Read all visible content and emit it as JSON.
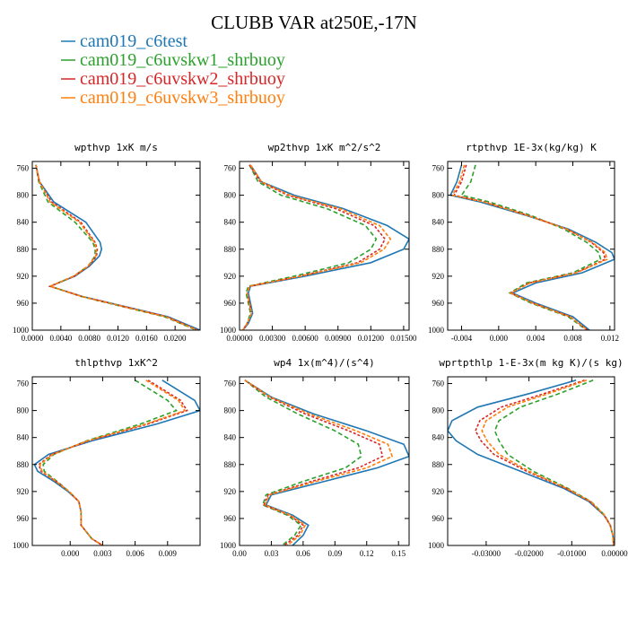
{
  "title": "CLUBB VAR at250E,-17N",
  "colors": {
    "cam019_c6test": "#1f77b4",
    "cam019_c6uvskw1_shrbuoy": "#2ca02c",
    "cam019_c6uvskw2_shrbuoy": "#d62728",
    "cam019_c6uvskw3_shrbuoy": "#ff7f0e"
  },
  "legend": [
    {
      "name": "cam019_c6test",
      "color": "#1f77b4",
      "dash": "solid"
    },
    {
      "name": "cam019_c6uvskw1_shrbuoy",
      "color": "#2ca02c",
      "dash": "dashed"
    },
    {
      "name": "cam019_c6uvskw2_shrbuoy",
      "color": "#d62728",
      "dash": "dashed"
    },
    {
      "name": "cam019_c6uvskw3_shrbuoy",
      "color": "#ff7f0e",
      "dash": "dashed"
    }
  ],
  "chart_data": [
    {
      "type": "line",
      "title": "wpthvp  1xK m/s",
      "ylim": [
        1000,
        750
      ],
      "yticks": [
        760,
        800,
        840,
        880,
        920,
        960,
        1000
      ],
      "xlim": [
        0,
        0.0235
      ],
      "xticks": [
        0,
        0.004,
        0.008,
        0.012,
        0.016,
        0.02
      ],
      "xtick_labels": [
        "0.0000",
        "0.0040",
        "0.0080",
        "0.0120",
        "0.0160",
        "0.0200"
      ],
      "y": [
        755,
        780,
        810,
        840,
        870,
        880,
        890,
        905,
        920,
        935,
        950,
        965,
        980,
        1000
      ],
      "series": [
        {
          "name": "cam019_c6test",
          "x": [
            0.0005,
            0.001,
            0.003,
            0.0075,
            0.0095,
            0.0097,
            0.0094,
            0.008,
            0.006,
            0.0025,
            0.007,
            0.013,
            0.019,
            0.0235
          ]
        },
        {
          "name": "cam019_c6uvskw1_shrbuoy",
          "x": [
            0.0005,
            0.0009,
            0.0022,
            0.006,
            0.0085,
            0.0088,
            0.0088,
            0.0078,
            0.0058,
            0.0025,
            0.0068,
            0.0126,
            0.0185,
            0.023
          ]
        },
        {
          "name": "cam019_c6uvskw2_shrbuoy",
          "x": [
            0.0005,
            0.001,
            0.0027,
            0.0068,
            0.0088,
            0.0091,
            0.009,
            0.0079,
            0.0059,
            0.0025,
            0.0069,
            0.0128,
            0.0188,
            0.0232
          ]
        },
        {
          "name": "cam019_c6uvskw3_shrbuoy",
          "x": [
            0.0005,
            0.001,
            0.0025,
            0.0066,
            0.0087,
            0.009,
            0.0089,
            0.0078,
            0.0058,
            0.0025,
            0.0069,
            0.0128,
            0.0187,
            0.0231
          ]
        }
      ]
    },
    {
      "type": "line",
      "title": "wp2thvp  1xK m^2/s^2",
      "ylim": [
        1000,
        750
      ],
      "yticks": [
        760,
        800,
        840,
        880,
        920,
        960,
        1000
      ],
      "xlim": [
        0,
        0.0155
      ],
      "xticks": [
        0,
        0.003,
        0.006,
        0.009,
        0.012,
        0.015
      ],
      "xtick_labels": [
        "0.00000",
        "0.00300",
        "0.00600",
        "0.00900",
        "0.01200",
        "0.01500"
      ],
      "y": [
        755,
        780,
        800,
        820,
        845,
        865,
        880,
        900,
        920,
        935,
        945,
        960,
        975,
        990,
        1000
      ],
      "series": [
        {
          "name": "cam019_c6test",
          "x": [
            0.001,
            0.002,
            0.005,
            0.0095,
            0.0135,
            0.0155,
            0.015,
            0.012,
            0.006,
            0.001,
            0.0008,
            0.001,
            0.0012,
            0.0008,
            0.0003
          ]
        },
        {
          "name": "cam019_c6uvskw1_shrbuoy",
          "x": [
            0.0009,
            0.0017,
            0.0038,
            0.008,
            0.0115,
            0.0125,
            0.012,
            0.01,
            0.005,
            0.0008,
            0.0006,
            0.0008,
            0.001,
            0.0007,
            0.0003
          ]
        },
        {
          "name": "cam019_c6uvskw2_shrbuoy",
          "x": [
            0.0009,
            0.0019,
            0.0044,
            0.0088,
            0.0123,
            0.0133,
            0.0128,
            0.0108,
            0.0055,
            0.0009,
            0.0007,
            0.0009,
            0.0011,
            0.0007,
            0.0003
          ]
        },
        {
          "name": "cam019_c6uvskw3_shrbuoy",
          "x": [
            0.001,
            0.002,
            0.0046,
            0.0092,
            0.0128,
            0.0138,
            0.0132,
            0.0111,
            0.0056,
            0.0009,
            0.0007,
            0.0009,
            0.0011,
            0.0007,
            0.0003
          ]
        }
      ]
    },
    {
      "type": "line",
      "title": "rtpthvp  1E-3x(kg/kg) K",
      "ylim": [
        1000,
        750
      ],
      "yticks": [
        760,
        800,
        840,
        880,
        920,
        960,
        1000
      ],
      "xlim": [
        -0.0055,
        0.0125
      ],
      "xticks": [
        -0.004,
        0,
        0.004,
        0.008,
        0.012
      ],
      "xtick_labels": [
        "-0.004",
        "0.000",
        "0.004",
        "0.008",
        "0.012"
      ],
      "y": [
        755,
        780,
        800,
        810,
        830,
        850,
        870,
        885,
        895,
        915,
        930,
        945,
        960,
        980,
        1000
      ],
      "series": [
        {
          "name": "cam019_c6test",
          "x": [
            -0.004,
            -0.0045,
            -0.0052,
            -0.002,
            0.003,
            0.0075,
            0.0105,
            0.0122,
            0.0125,
            0.009,
            0.004,
            0.0015,
            0.004,
            0.008,
            0.0098
          ]
        },
        {
          "name": "cam019_c6uvskw1_shrbuoy",
          "x": [
            -0.0025,
            -0.003,
            -0.004,
            -0.001,
            0.0035,
            0.007,
            0.0095,
            0.0108,
            0.011,
            0.008,
            0.003,
            0.0012,
            0.0035,
            0.0075,
            0.0095
          ]
        },
        {
          "name": "cam019_c6uvskw2_shrbuoy",
          "x": [
            -0.0035,
            -0.004,
            -0.0048,
            -0.0015,
            0.0032,
            0.0073,
            0.01,
            0.0113,
            0.0115,
            0.0083,
            0.0033,
            0.0013,
            0.0037,
            0.0077,
            0.0096
          ]
        },
        {
          "name": "cam019_c6uvskw3_shrbuoy",
          "x": [
            -0.0037,
            -0.0042,
            -0.005,
            -0.0016,
            0.0031,
            0.0073,
            0.0101,
            0.0115,
            0.0117,
            0.0084,
            0.0034,
            0.0013,
            0.0037,
            0.0077,
            0.0096
          ]
        }
      ]
    },
    {
      "type": "line",
      "title": "thlpthvp  1xK^2",
      "ylim": [
        1000,
        750
      ],
      "yticks": [
        760,
        800,
        840,
        880,
        920,
        960,
        1000
      ],
      "xlim": [
        -0.0035,
        0.012
      ],
      "xticks": [
        0,
        0.003,
        0.006,
        0.009
      ],
      "xtick_labels": [
        "0.000",
        "0.003",
        "0.006",
        "0.009"
      ],
      "y": [
        755,
        785,
        800,
        820,
        845,
        865,
        880,
        890,
        905,
        920,
        935,
        950,
        970,
        990,
        1000
      ],
      "series": [
        {
          "name": "cam019_c6test",
          "x": [
            0.0085,
            0.0115,
            0.012,
            0.008,
            0.002,
            -0.002,
            -0.0033,
            -0.003,
            -0.0015,
            -0.0002,
            0.0008,
            0.001,
            0.001,
            0.002,
            0.003
          ]
        },
        {
          "name": "cam019_c6uvskw1_shrbuoy",
          "x": [
            0.006,
            0.009,
            0.0098,
            0.0065,
            0.0015,
            -0.0015,
            -0.0025,
            -0.0024,
            -0.0012,
            -0.0001,
            0.0008,
            0.001,
            0.001,
            0.002,
            0.003
          ]
        },
        {
          "name": "cam019_c6uvskw2_shrbuoy",
          "x": [
            0.0072,
            0.0102,
            0.0108,
            0.0072,
            0.0017,
            -0.0017,
            -0.0029,
            -0.0027,
            -0.0013,
            -0.0001,
            0.0008,
            0.001,
            0.001,
            0.002,
            0.003
          ]
        },
        {
          "name": "cam019_c6uvskw3_shrbuoy",
          "x": [
            0.007,
            0.01,
            0.0106,
            0.007,
            0.0016,
            -0.0016,
            -0.0028,
            -0.0026,
            -0.0013,
            -0.0001,
            0.0008,
            0.001,
            0.001,
            0.002,
            0.003
          ]
        }
      ]
    },
    {
      "type": "line",
      "title": "wp4  1x(m^4)/(s^4)",
      "ylim": [
        1000,
        750
      ],
      "yticks": [
        760,
        800,
        840,
        880,
        920,
        960,
        1000
      ],
      "xlim": [
        0,
        0.16
      ],
      "xticks": [
        0,
        0.03,
        0.06,
        0.09,
        0.12,
        0.15
      ],
      "xtick_labels": [
        "0.00",
        "0.03",
        "0.06",
        "0.09",
        "0.12",
        "0.15"
      ],
      "y": [
        755,
        780,
        805,
        830,
        850,
        868,
        885,
        905,
        925,
        940,
        955,
        970,
        985,
        1000
      ],
      "series": [
        {
          "name": "cam019_c6test",
          "x": [
            0.005,
            0.03,
            0.07,
            0.12,
            0.155,
            0.16,
            0.13,
            0.08,
            0.03,
            0.025,
            0.05,
            0.065,
            0.06,
            0.05
          ]
        },
        {
          "name": "cam019_c6uvskw1_shrbuoy",
          "x": [
            0.005,
            0.025,
            0.055,
            0.09,
            0.112,
            0.115,
            0.1,
            0.06,
            0.025,
            0.022,
            0.045,
            0.058,
            0.052,
            0.04
          ]
        },
        {
          "name": "cam019_c6uvskw2_shrbuoy",
          "x": [
            0.005,
            0.028,
            0.062,
            0.103,
            0.132,
            0.135,
            0.112,
            0.068,
            0.027,
            0.023,
            0.047,
            0.06,
            0.055,
            0.042
          ]
        },
        {
          "name": "cam019_c6uvskw3_shrbuoy",
          "x": [
            0.005,
            0.029,
            0.066,
            0.11,
            0.14,
            0.144,
            0.12,
            0.072,
            0.028,
            0.024,
            0.048,
            0.062,
            0.057,
            0.045
          ]
        }
      ]
    },
    {
      "type": "line",
      "title": "wprtpthlp  1-E-3x(m kg K)/(s kg)",
      "ylim": [
        1000,
        750
      ],
      "yticks": [
        760,
        800,
        840,
        880,
        920,
        960,
        1000
      ],
      "xlim": [
        -0.039,
        0
      ],
      "xticks": [
        -0.03,
        -0.02,
        -0.01,
        0
      ],
      "xtick_labels": [
        "-0.03000",
        "-0.02000",
        "-0.01000",
        "0.00000"
      ],
      "y": [
        755,
        775,
        795,
        815,
        830,
        845,
        865,
        890,
        915,
        935,
        955,
        970,
        985,
        1000
      ],
      "series": [
        {
          "name": "cam019_c6test",
          "x": [
            -0.009,
            -0.02,
            -0.032,
            -0.038,
            -0.039,
            -0.037,
            -0.032,
            -0.022,
            -0.012,
            -0.006,
            -0.0025,
            -0.001,
            -0.0004,
            -0.0002
          ]
        },
        {
          "name": "cam019_c6uvskw1_shrbuoy",
          "x": [
            -0.005,
            -0.013,
            -0.022,
            -0.027,
            -0.028,
            -0.027,
            -0.025,
            -0.019,
            -0.011,
            -0.0055,
            -0.0023,
            -0.001,
            -0.0004,
            -0.0002
          ]
        },
        {
          "name": "cam019_c6uvskw2_shrbuoy",
          "x": [
            -0.007,
            -0.0165,
            -0.0265,
            -0.0315,
            -0.0325,
            -0.0312,
            -0.0282,
            -0.0205,
            -0.0115,
            -0.0057,
            -0.0024,
            -0.001,
            -0.0004,
            -0.0002
          ]
        },
        {
          "name": "cam019_c6uvskw3_shrbuoy",
          "x": [
            -0.0065,
            -0.0155,
            -0.025,
            -0.03,
            -0.031,
            -0.0298,
            -0.027,
            -0.02,
            -0.0113,
            -0.0056,
            -0.0024,
            -0.001,
            -0.0004,
            -0.0002
          ]
        }
      ]
    }
  ]
}
